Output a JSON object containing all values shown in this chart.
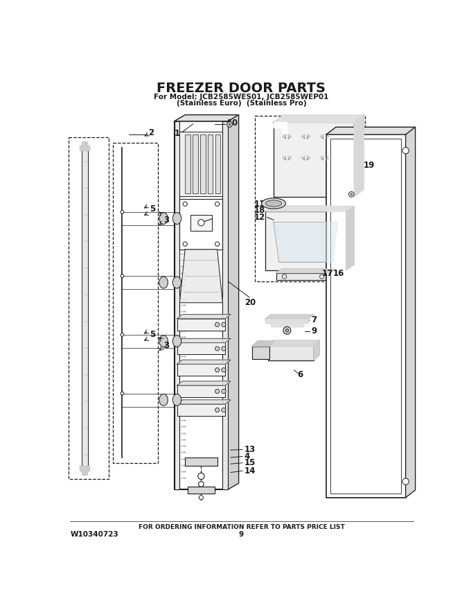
{
  "title": "FREEZER DOOR PARTS",
  "subtitle1": "For Model: JCB2585WES01, JCB2585WEP01",
  "subtitle2": "(Stainless Euro)  (Stainless Pro)",
  "footer_center": "FOR ORDERING INFORMATION REFER TO PARTS PRICE LIST",
  "footer_left": "W10340723",
  "footer_page": "9",
  "bg_color": "#ffffff",
  "line_color": "#1a1a1a",
  "title_fontsize": 14,
  "subtitle_fontsize": 7.5,
  "footer_fontsize": 6.5,
  "label_fontsize": 8.5
}
